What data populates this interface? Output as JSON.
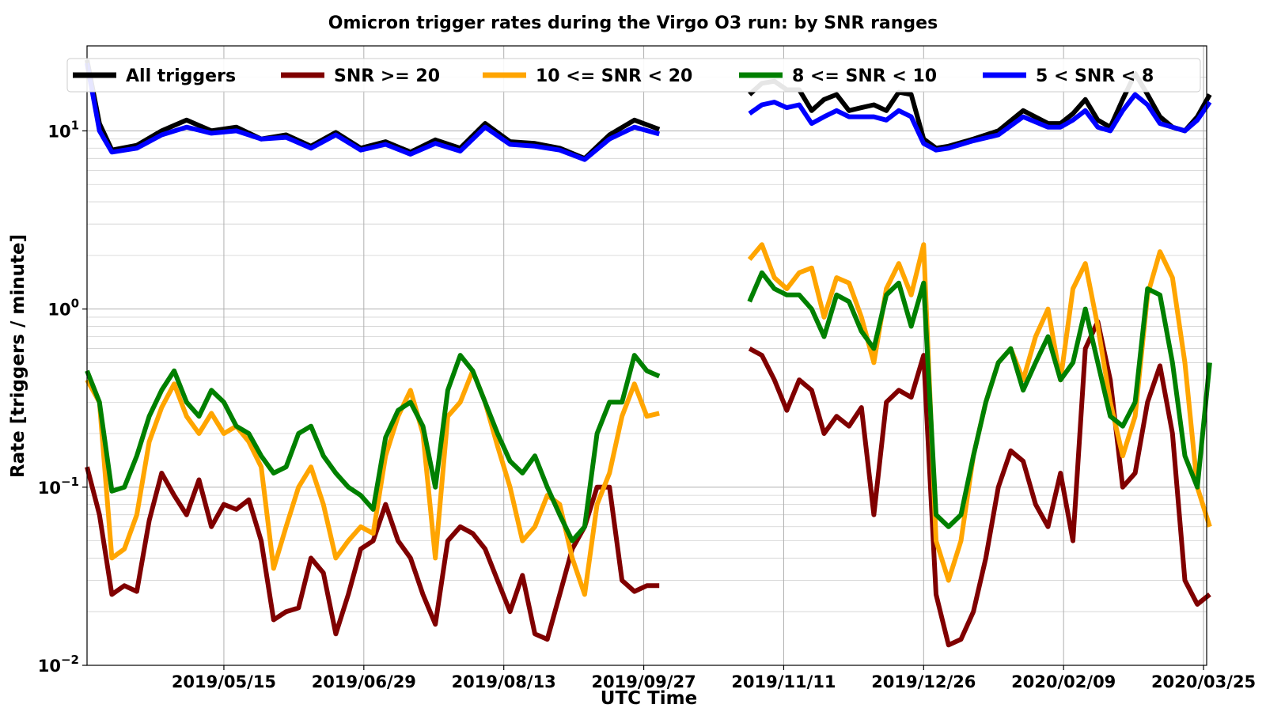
{
  "chart_data": {
    "type": "line",
    "title": "Omicron trigger rates during the Virgo O3 run: by SNR ranges",
    "xlabel": "UTC Time",
    "ylabel": "Rate [triggers / minute]",
    "yscale": "log",
    "ylim": [
      0.01,
      30
    ],
    "xlim_days": [
      0,
      360
    ],
    "y_ticks": [
      {
        "value": 0.01,
        "base": "10",
        "exp": "−2"
      },
      {
        "value": 0.1,
        "base": "10",
        "exp": "−1"
      },
      {
        "value": 1,
        "base": "10",
        "exp": "0"
      },
      {
        "value": 10,
        "base": "10",
        "exp": "1"
      }
    ],
    "x_ticks": [
      {
        "day": 44,
        "label": "2019/05/15"
      },
      {
        "day": 89,
        "label": "2019/06/29"
      },
      {
        "day": 134,
        "label": "2019/08/13"
      },
      {
        "day": 179,
        "label": "2019/09/27"
      },
      {
        "day": 224,
        "label": "2019/11/11"
      },
      {
        "day": 269,
        "label": "2019/12/26"
      },
      {
        "day": 314,
        "label": "2020/02/09"
      },
      {
        "day": 359,
        "label": "2020/03/25"
      }
    ],
    "x_unit_note": "days since 2019-04-01",
    "legend_position": "top",
    "series": [
      {
        "name": "All triggers",
        "color": "#000000",
        "segments": [
          {
            "x": [
              0,
              4,
              8,
              16,
              24,
              32,
              40,
              48,
              56,
              64,
              72,
              80,
              88,
              96,
              104,
              112,
              120,
              128,
              136,
              144,
              152,
              160,
              168,
              176,
              184
            ],
            "y": [
              25,
              11,
              7.8,
              8.3,
              10,
              11.5,
              10,
              10.5,
              9,
              9.5,
              8.2,
              9.8,
              8,
              8.7,
              7.6,
              8.9,
              8,
              11,
              8.7,
              8.5,
              8,
              7,
              9.5,
              11.5,
              10.2
            ]
          },
          {
            "x": [
              213,
              217,
              221,
              225,
              229,
              233,
              237,
              241,
              245,
              249,
              253,
              257,
              261,
              265,
              269,
              273,
              277,
              285,
              293,
              301,
              309,
              313,
              317,
              321,
              325,
              329,
              333,
              337,
              341,
              345,
              349,
              353,
              357,
              361
            ],
            "y": [
              16,
              18.5,
              19,
              17,
              17,
              13,
              15,
              16,
              13,
              13.5,
              14,
              13,
              16.5,
              16,
              9,
              8,
              8.2,
              9,
              10,
              13,
              11,
              11,
              12.5,
              15,
              11.5,
              10.5,
              15,
              21,
              16,
              12,
              10.5,
              10,
              12,
              16
            ]
          }
        ]
      },
      {
        "name": "SNR >= 20",
        "color": "#800000",
        "segments": [
          {
            "x": [
              0,
              4,
              8,
              12,
              16,
              20,
              24,
              28,
              32,
              36,
              40,
              44,
              48,
              52,
              56,
              60,
              64,
              68,
              72,
              76,
              80,
              84,
              88,
              92,
              96,
              100,
              104,
              108,
              112,
              116,
              120,
              124,
              128,
              132,
              136,
              140,
              144,
              148,
              152,
              156,
              160,
              164,
              168,
              172,
              176,
              180,
              184
            ],
            "y": [
              0.13,
              0.07,
              0.025,
              0.028,
              0.026,
              0.065,
              0.12,
              0.09,
              0.07,
              0.11,
              0.06,
              0.08,
              0.075,
              0.085,
              0.05,
              0.018,
              0.02,
              0.021,
              0.04,
              0.033,
              0.015,
              0.025,
              0.045,
              0.05,
              0.08,
              0.05,
              0.04,
              0.025,
              0.017,
              0.05,
              0.06,
              0.055,
              0.045,
              0.03,
              0.02,
              0.032,
              0.015,
              0.014,
              0.025,
              0.045,
              0.06,
              0.1,
              0.1,
              0.03,
              0.026,
              0.028,
              0.028
            ]
          },
          {
            "x": [
              213,
              217,
              221,
              225,
              229,
              233,
              237,
              241,
              245,
              249,
              253,
              257,
              261,
              265,
              269,
              273,
              277,
              281,
              285,
              289,
              293,
              297,
              301,
              305,
              309,
              313,
              317,
              321,
              325,
              329,
              333,
              337,
              341,
              345,
              349,
              353,
              357,
              361
            ],
            "y": [
              0.6,
              0.55,
              0.4,
              0.27,
              0.4,
              0.35,
              0.2,
              0.25,
              0.22,
              0.28,
              0.07,
              0.3,
              0.35,
              0.32,
              0.55,
              0.025,
              0.013,
              0.014,
              0.02,
              0.04,
              0.1,
              0.16,
              0.14,
              0.08,
              0.06,
              0.12,
              0.05,
              0.6,
              0.85,
              0.4,
              0.1,
              0.12,
              0.3,
              0.48,
              0.2,
              0.03,
              0.022,
              0.025
            ]
          }
        ]
      },
      {
        "name": "10 <= SNR < 20",
        "color": "#FFA500",
        "segments": [
          {
            "x": [
              0,
              4,
              8,
              12,
              16,
              20,
              24,
              28,
              32,
              36,
              40,
              44,
              48,
              52,
              56,
              60,
              64,
              68,
              72,
              76,
              80,
              84,
              88,
              92,
              96,
              100,
              104,
              108,
              112,
              116,
              120,
              124,
              128,
              132,
              136,
              140,
              144,
              148,
              152,
              156,
              160,
              164,
              168,
              172,
              176,
              180,
              184
            ],
            "y": [
              0.4,
              0.3,
              0.04,
              0.045,
              0.07,
              0.18,
              0.28,
              0.38,
              0.25,
              0.2,
              0.26,
              0.2,
              0.22,
              0.18,
              0.13,
              0.035,
              0.06,
              0.1,
              0.13,
              0.08,
              0.04,
              0.05,
              0.06,
              0.055,
              0.15,
              0.25,
              0.35,
              0.2,
              0.04,
              0.25,
              0.3,
              0.45,
              0.3,
              0.17,
              0.1,
              0.05,
              0.06,
              0.09,
              0.08,
              0.04,
              0.025,
              0.08,
              0.12,
              0.25,
              0.38,
              0.25,
              0.26
            ]
          },
          {
            "x": [
              213,
              217,
              221,
              225,
              229,
              233,
              237,
              241,
              245,
              249,
              253,
              257,
              261,
              265,
              269,
              273,
              277,
              281,
              285,
              289,
              293,
              297,
              301,
              305,
              309,
              313,
              317,
              321,
              325,
              329,
              333,
              337,
              341,
              345,
              349,
              353,
              357,
              361
            ],
            "y": [
              1.9,
              2.3,
              1.5,
              1.3,
              1.6,
              1.7,
              0.9,
              1.5,
              1.4,
              0.9,
              0.5,
              1.3,
              1.8,
              1.2,
              2.3,
              0.05,
              0.03,
              0.05,
              0.15,
              0.3,
              0.5,
              0.6,
              0.4,
              0.7,
              1.0,
              0.4,
              1.3,
              1.8,
              0.8,
              0.3,
              0.15,
              0.25,
              1.2,
              2.1,
              1.5,
              0.5,
              0.1,
              0.06
            ]
          }
        ]
      },
      {
        "name": "8 <= SNR < 10",
        "color": "#008000",
        "segments": [
          {
            "x": [
              0,
              4,
              8,
              12,
              16,
              20,
              24,
              28,
              32,
              36,
              40,
              44,
              48,
              52,
              56,
              60,
              64,
              68,
              72,
              76,
              80,
              84,
              88,
              92,
              96,
              100,
              104,
              108,
              112,
              116,
              120,
              124,
              128,
              132,
              136,
              140,
              144,
              148,
              152,
              156,
              160,
              164,
              168,
              172,
              176,
              180,
              184
            ],
            "y": [
              0.45,
              0.3,
              0.095,
              0.1,
              0.15,
              0.25,
              0.35,
              0.45,
              0.3,
              0.25,
              0.35,
              0.3,
              0.22,
              0.2,
              0.15,
              0.12,
              0.13,
              0.2,
              0.22,
              0.15,
              0.12,
              0.1,
              0.09,
              0.075,
              0.19,
              0.27,
              0.3,
              0.22,
              0.1,
              0.35,
              0.55,
              0.45,
              0.3,
              0.2,
              0.14,
              0.12,
              0.15,
              0.1,
              0.07,
              0.05,
              0.06,
              0.2,
              0.3,
              0.3,
              0.55,
              0.45,
              0.42
            ]
          },
          {
            "x": [
              213,
              217,
              221,
              225,
              229,
              233,
              237,
              241,
              245,
              249,
              253,
              257,
              261,
              265,
              269,
              273,
              277,
              281,
              285,
              289,
              293,
              297,
              301,
              305,
              309,
              313,
              317,
              321,
              325,
              329,
              333,
              337,
              341,
              345,
              349,
              353,
              357,
              361
            ],
            "y": [
              1.1,
              1.6,
              1.3,
              1.2,
              1.2,
              1.0,
              0.7,
              1.2,
              1.1,
              0.75,
              0.6,
              1.2,
              1.4,
              0.8,
              1.4,
              0.07,
              0.06,
              0.07,
              0.15,
              0.3,
              0.5,
              0.6,
              0.35,
              0.5,
              0.7,
              0.4,
              0.5,
              1.0,
              0.5,
              0.25,
              0.22,
              0.3,
              1.3,
              1.2,
              0.5,
              0.15,
              0.1,
              0.5
            ]
          }
        ]
      },
      {
        "name": "5 < SNR < 8",
        "color": "#0000FF",
        "segments": [
          {
            "x": [
              0,
              4,
              8,
              16,
              24,
              32,
              40,
              48,
              56,
              64,
              72,
              80,
              88,
              96,
              104,
              112,
              120,
              128,
              136,
              144,
              152,
              160,
              168,
              176,
              184
            ],
            "y": [
              24,
              10,
              7.6,
              8,
              9.5,
              10.5,
              9.7,
              10,
              9,
              9.2,
              8,
              9.5,
              7.8,
              8.4,
              7.4,
              8.5,
              7.7,
              10.5,
              8.4,
              8.2,
              7.8,
              6.9,
              9,
              10.5,
              9.6
            ]
          },
          {
            "x": [
              213,
              217,
              221,
              225,
              229,
              233,
              237,
              241,
              245,
              249,
              253,
              257,
              261,
              265,
              269,
              273,
              277,
              285,
              293,
              301,
              309,
              313,
              317,
              321,
              325,
              329,
              333,
              337,
              341,
              345,
              349,
              353,
              357,
              361
            ],
            "y": [
              12.5,
              14,
              14.5,
              13.5,
              14,
              11,
              12,
              13,
              12,
              12,
              12,
              11.5,
              13,
              12,
              8.5,
              7.8,
              8,
              8.8,
              9.5,
              12,
              10.5,
              10.5,
              11.5,
              13,
              10.5,
              10,
              13,
              16,
              14,
              11,
              10.5,
              10,
              11.5,
              14.5
            ]
          }
        ]
      }
    ]
  }
}
